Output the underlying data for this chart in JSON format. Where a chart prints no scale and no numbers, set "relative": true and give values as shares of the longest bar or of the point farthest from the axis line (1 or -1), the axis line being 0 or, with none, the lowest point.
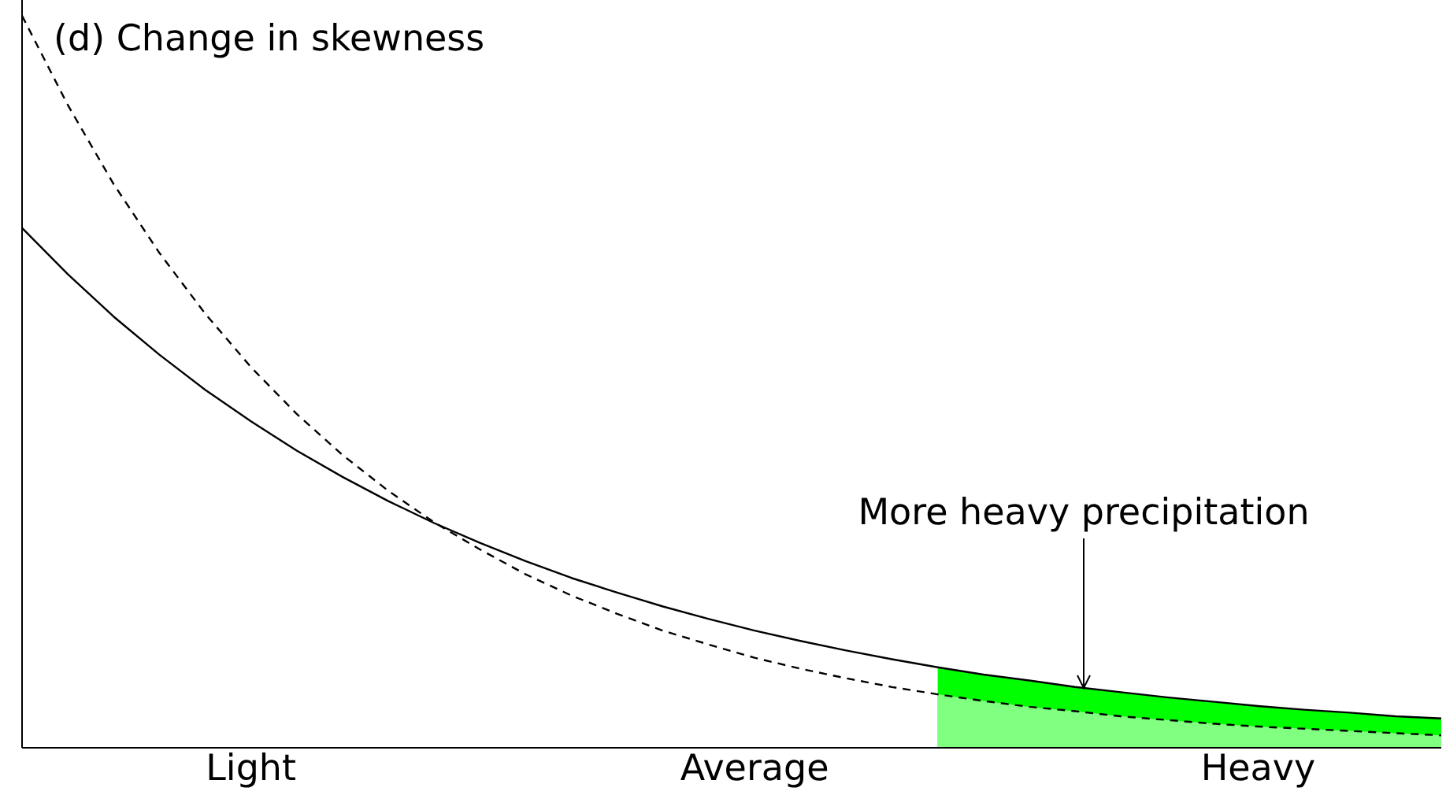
{
  "chart_data": {
    "type": "line",
    "title": "(d) Change in skewness",
    "relative": true,
    "categories": [
      null,
      null,
      null,
      null,
      null,
      "Light",
      null,
      null,
      null,
      null,
      null,
      null,
      null,
      null,
      null,
      null,
      "Average",
      null,
      null,
      null,
      null,
      null,
      null,
      null,
      null,
      null,
      null,
      "Heavy",
      null,
      null,
      null,
      null
    ],
    "series": [
      {
        "type": "area",
        "color": "#00ff00",
        "values": [
          null,
          null,
          null,
          null,
          null,
          null,
          null,
          null,
          null,
          null,
          null,
          null,
          null,
          null,
          null,
          null,
          null,
          null,
          null,
          null,
          0.11,
          0.1,
          0.092,
          0.083,
          0.076,
          0.069,
          0.063,
          0.057,
          0.052,
          0.048,
          0.043,
          0.04
        ]
      },
      {
        "type": "area",
        "color": "#80ff80",
        "values": [
          null,
          null,
          null,
          null,
          null,
          null,
          null,
          null,
          null,
          null,
          null,
          null,
          null,
          null,
          null,
          null,
          null,
          null,
          null,
          null,
          0.073,
          0.064,
          0.056,
          0.05,
          0.043,
          0.038,
          0.033,
          0.029,
          0.026,
          0.023,
          0.02,
          0.017
        ]
      },
      {
        "color": "#000000",
        "line_style": "solid",
        "values": [
          0.71,
          0.647,
          0.589,
          0.537,
          0.489,
          0.446,
          0.406,
          0.37,
          0.337,
          0.307,
          0.28,
          0.255,
          0.232,
          0.212,
          0.193,
          0.176,
          0.16,
          0.146,
          0.133,
          0.121,
          0.11,
          0.1,
          0.092,
          0.083,
          0.076,
          0.069,
          0.063,
          0.057,
          0.052,
          0.048,
          0.043,
          0.04
        ]
      },
      {
        "color": "#000000",
        "line_style": "dashed",
        "values": [
          1,
          0.878,
          0.77,
          0.676,
          0.593,
          0.52,
          0.456,
          0.4,
          0.351,
          0.308,
          0.271,
          0.237,
          0.208,
          0.183,
          0.16,
          0.141,
          0.123,
          0.108,
          0.095,
          0.083,
          0.073,
          0.064,
          0.056,
          0.05,
          0.043,
          0.038,
          0.033,
          0.029,
          0.026,
          0.023,
          0.02,
          0.017
        ]
      }
    ],
    "annotations": [
      "More heavy precipitation"
    ]
  }
}
